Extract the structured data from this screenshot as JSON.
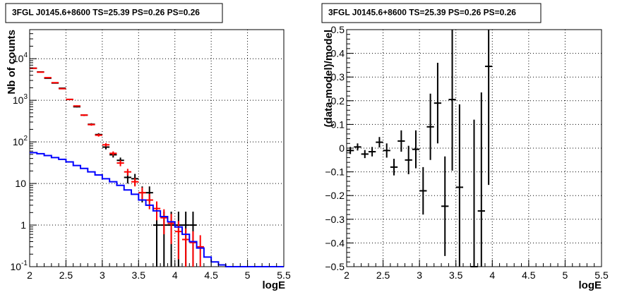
{
  "chart_data": [
    {
      "type": "histogram-errorbar",
      "title": "3FGL J0145.6+8600 TS=25.39 PS=0.26 PS=0.26",
      "xlabel": "logE",
      "ylabel": "Nb of counts",
      "xlim": [
        2,
        5.5
      ],
      "ylim": [
        0.1,
        50000
      ],
      "y_scale": "log",
      "grid": true,
      "x_ticks": [
        "2",
        "2.5",
        "3",
        "3.5",
        "4",
        "4.5",
        "5",
        "5.5"
      ],
      "y_ticks": [
        {
          "value": 0.1,
          "label": "10",
          "exp": "-1"
        },
        {
          "value": 1,
          "label": "1",
          "exp": ""
        },
        {
          "value": 10,
          "label": "10",
          "exp": ""
        },
        {
          "value": 100,
          "label": "10",
          "exp": "2"
        },
        {
          "value": 1000,
          "label": "10",
          "exp": "3"
        },
        {
          "value": 10000,
          "label": "10",
          "exp": "4"
        }
      ],
      "bin_edges": [
        2.0,
        2.1,
        2.2,
        2.3,
        2.4,
        2.5,
        2.6,
        2.7,
        2.8,
        2.9,
        3.0,
        3.1,
        3.2,
        3.3,
        3.4,
        3.5,
        3.6,
        3.7,
        3.8,
        3.9,
        4.0,
        4.1,
        4.2,
        4.3,
        4.4,
        4.5,
        4.6,
        4.7,
        4.8,
        4.9,
        5.0,
        5.1,
        5.2,
        5.3,
        5.4,
        5.5
      ],
      "series": [
        {
          "color": "#000000",
          "style": "points",
          "x": [
            2.05,
            2.15,
            2.25,
            2.35,
            2.45,
            2.55,
            2.65,
            2.75,
            2.85,
            2.95,
            3.05,
            3.15,
            3.25,
            3.35,
            3.45,
            3.55,
            3.65,
            3.75,
            3.85,
            3.95,
            4.05,
            4.15,
            4.25
          ],
          "y": [
            5900,
            4800,
            3400,
            2600,
            1950,
            1050,
            700,
            440,
            265,
            150,
            75,
            49,
            36,
            14,
            13,
            6,
            6,
            1,
            1,
            1,
            1,
            1,
            1
          ],
          "err_lo": [
            80,
            70,
            60,
            50,
            45,
            32,
            26,
            21,
            16,
            12,
            9,
            7,
            6,
            4,
            4,
            2.5,
            2.5,
            1,
            1,
            1,
            1,
            1,
            1
          ],
          "err_hi": [
            80,
            70,
            60,
            50,
            45,
            32,
            26,
            21,
            16,
            12,
            9,
            7,
            6,
            4,
            4,
            2.5,
            2.5,
            1.1,
            1.1,
            1.1,
            1.1,
            1.1,
            1.1
          ]
        },
        {
          "color": "#ff0000",
          "style": "points",
          "x": [
            2.05,
            2.15,
            2.25,
            2.35,
            2.45,
            2.55,
            2.65,
            2.75,
            2.85,
            2.95,
            3.05,
            3.15,
            3.25,
            3.35,
            3.45,
            3.55,
            3.65,
            3.75,
            3.85,
            3.95,
            4.05,
            4.15,
            4.25,
            4.35
          ],
          "y": [
            5900,
            4750,
            3500,
            2650,
            1900,
            1050,
            730,
            440,
            260,
            145,
            85,
            53,
            31,
            19,
            11,
            6,
            4,
            2.5,
            1.5,
            1.1,
            0.7,
            0.45,
            0.38,
            0.3
          ],
          "err_lo": [
            70,
            60,
            50,
            45,
            40,
            30,
            25,
            20,
            15,
            11,
            8,
            6,
            5,
            3.5,
            2.5,
            2,
            1.6,
            1.2,
            0.9,
            0.75,
            0.55,
            0.38,
            0.33,
            0.27
          ],
          "err_hi": [
            70,
            60,
            50,
            45,
            40,
            30,
            25,
            20,
            15,
            11,
            8,
            6,
            5,
            3.5,
            2.5,
            2,
            1.6,
            1.2,
            0.9,
            0.75,
            0.55,
            0.38,
            0.33,
            0.27
          ]
        },
        {
          "color": "#0000ff",
          "style": "step",
          "values": [
            55,
            52,
            47,
            42,
            38,
            33,
            27,
            23,
            19,
            16,
            13,
            11,
            9,
            7,
            5.5,
            4,
            3,
            2.2,
            1.6,
            1.2,
            0.9,
            0.6,
            0.4,
            0.28,
            0.17,
            0.13,
            0.11,
            0.1,
            0.1,
            0.1,
            0.1,
            0.1,
            0.1,
            0.1,
            0.1
          ]
        }
      ]
    },
    {
      "type": "errorbar",
      "title": "3FGL J0145.6+8600 TS=25.39 PS=0.26 PS=0.26",
      "xlabel": "logE",
      "ylabel": "(data-model)/model",
      "xlim": [
        2,
        5.5
      ],
      "ylim": [
        -0.5,
        0.5
      ],
      "grid": true,
      "x_ticks": [
        "2",
        "2.5",
        "3",
        "3.5",
        "4",
        "4.5",
        "5",
        "5.5"
      ],
      "y_ticks": [
        "-0.5",
        "-0.4",
        "-0.3",
        "-0.2",
        "-0.1",
        "0",
        "0.1",
        "0.2",
        "0.3",
        "0.4",
        "0.5"
      ],
      "x_err": 0.05,
      "series": [
        {
          "color": "#000000",
          "x": [
            2.05,
            2.15,
            2.25,
            2.35,
            2.45,
            2.55,
            2.65,
            2.75,
            2.85,
            2.95,
            3.05,
            3.15,
            3.25,
            3.35,
            3.45,
            3.55,
            3.75,
            3.85,
            3.95
          ],
          "y": [
            -0.01,
            0.005,
            -0.025,
            -0.015,
            0.025,
            -0.01,
            -0.08,
            0.03,
            -0.05,
            -0.005,
            -0.18,
            0.09,
            0.19,
            -0.245,
            0.205,
            -0.165,
            -0.5,
            -0.265,
            0.345
          ],
          "err_lo": [
            0.015,
            0.015,
            0.017,
            0.02,
            0.022,
            0.03,
            0.035,
            0.045,
            0.06,
            0.08,
            0.1,
            0.14,
            0.17,
            0.21,
            0.3,
            0.35,
            0.4,
            0.5,
            0.5
          ],
          "err_hi": [
            0.015,
            0.015,
            0.017,
            0.02,
            0.022,
            0.03,
            0.035,
            0.045,
            0.06,
            0.08,
            0.1,
            0.14,
            0.17,
            0.21,
            0.3,
            0.35,
            0.62,
            0.5,
            0.5
          ]
        }
      ]
    }
  ]
}
